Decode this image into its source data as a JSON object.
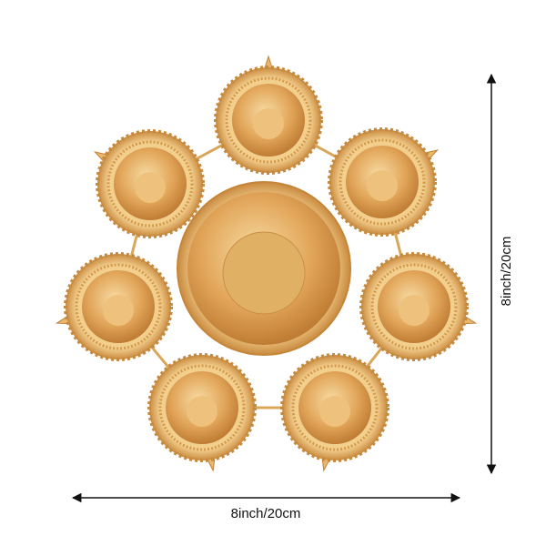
{
  "product": {
    "width_label": "8inch/20cm",
    "height_label": "8inch/20cm",
    "colors": {
      "gold_light": "#f6d79a",
      "gold_mid": "#e3a656",
      "gold_dark": "#b86f24",
      "arrow": "#111111"
    }
  }
}
